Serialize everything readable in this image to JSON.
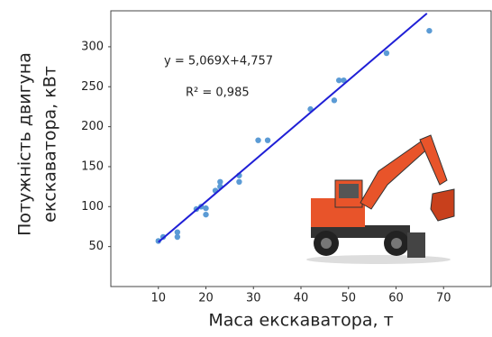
{
  "chart_data": {
    "type": "scatter",
    "x": [
      10,
      11,
      14,
      14,
      18,
      19,
      20,
      20,
      22,
      23,
      23,
      27,
      27,
      31,
      33,
      42,
      47,
      48,
      49,
      58,
      67
    ],
    "values": [
      57,
      62,
      62,
      68,
      97,
      100,
      90,
      98,
      120,
      125,
      131,
      131,
      139,
      183,
      183,
      222,
      233,
      258,
      258,
      292,
      320
    ],
    "color": "#5b9bd5",
    "trendline": {
      "x": [
        10,
        66.5
      ],
      "y": [
        55.5,
        341.8
      ],
      "color": "#1f1fd6"
    },
    "equation": "y = 5,069X+4,757",
    "r_squared": "R² = 0,985",
    "xlabel": "Маса екскаватора, т",
    "ylabel": [
      "Потужність двигуна",
      "екскаватора, кВт"
    ],
    "xlim": [
      0,
      80
    ],
    "ylim": [
      0,
      345
    ],
    "xticks": [
      10,
      20,
      30,
      40,
      50,
      60,
      70
    ],
    "yticks": [
      50,
      100,
      150,
      200,
      250,
      300
    ],
    "grid": false
  }
}
